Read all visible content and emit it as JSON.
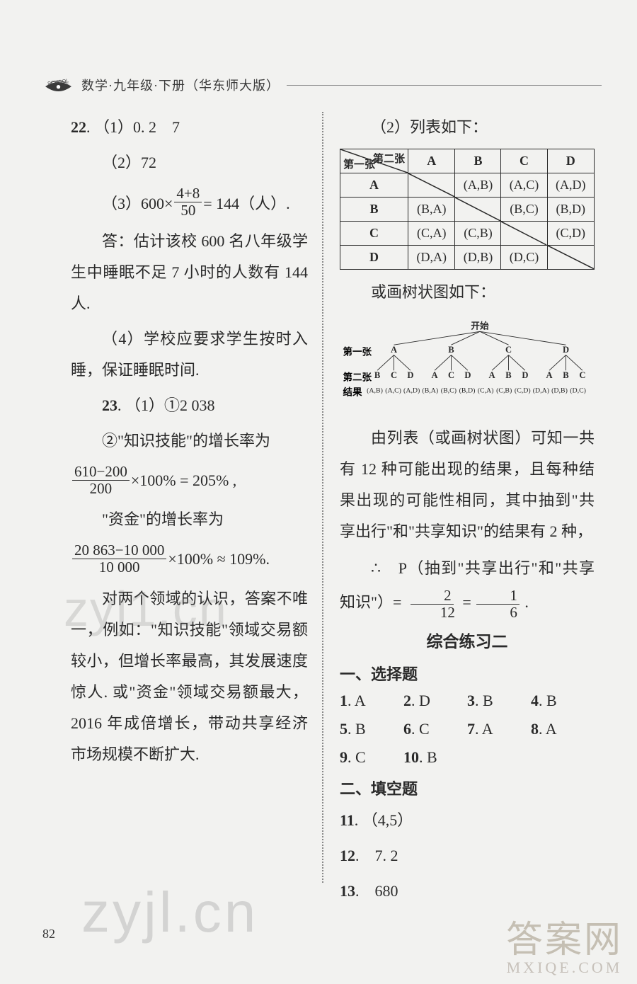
{
  "header": {
    "title": "数学·九年级·下册（华东师大版）",
    "logo_text": "SCHOOL"
  },
  "left": {
    "l1a": "22",
    "l1b": "（1）0. 2　7",
    "l2": "（2）72",
    "l3_prefix": "（3）600×",
    "l3_num": "4+8",
    "l3_den": "50",
    "l3_suffix": "= 144（人）.",
    "l4": "答：估计该校 600 名八年级学生中睡眠不足 7 小时的人数有 144 人.",
    "l5": "（4）学校应要求学生按时入睡，保证睡眠时间.",
    "l6a": "23",
    "l6b": "（1）①2 038",
    "l7": "②\"知识技能\"的增长率为",
    "l8_num": "610−200",
    "l8_den": "200",
    "l8_suffix": "×100% = 205% ,",
    "l9": "\"资金\"的增长率为",
    "l10_num": "20 863−10 000",
    "l10_den": "10 000",
    "l10_suffix": "×100% ≈ 109%.",
    "l11": "对两个领域的认识，答案不唯一，例如：\"知识技能\"领域交易额较小，但增长率最高，其发展速度惊人. 或\"资金\"领域交易额最大，2016 年成倍增长，带动共享经济市场规模不断扩大."
  },
  "right": {
    "r1": "（2）列表如下：",
    "table": {
      "col_header_top": "第二张",
      "col_header_bot": "第一张",
      "cols": [
        "A",
        "B",
        "C",
        "D"
      ],
      "rows": [
        {
          "h": "A",
          "cells": [
            "",
            "(A,B)",
            "(A,C)",
            "(A,D)"
          ]
        },
        {
          "h": "B",
          "cells": [
            "(B,A)",
            "",
            "(B,C)",
            "(B,D)"
          ]
        },
        {
          "h": "C",
          "cells": [
            "(C,A)",
            "(C,B)",
            "",
            "(C,D)"
          ]
        },
        {
          "h": "D",
          "cells": [
            "(D,A)",
            "(D,B)",
            "(D,C)",
            ""
          ]
        }
      ]
    },
    "r2": "或画树状图如下：",
    "tree": {
      "root": "开始",
      "row1_label": "第一张",
      "row2_label": "第二张",
      "row3_label": "结果",
      "level1": [
        "A",
        "B",
        "C",
        "D"
      ],
      "level2": [
        [
          "B",
          "C",
          "D"
        ],
        [
          "A",
          "C",
          "D"
        ],
        [
          "A",
          "B",
          "D"
        ],
        [
          "A",
          "B",
          "C"
        ]
      ],
      "outcomes": [
        "(A,B)",
        "(A,C)",
        "(A,D)",
        "(B,A)",
        "(B,C)",
        "(B,D)",
        "(C,A)",
        "(C,B)",
        "(C,D)",
        "(D,A)",
        "(D,B)",
        "(D,C)"
      ]
    },
    "r3": "由列表（或画树状图）可知一共有 12 种可能出现的结果，且每种结果出现的可能性相同，其中抽到\"共享出行\"和\"共享知识\"的结果有 2 种，",
    "r4_prefix": "∴　P（抽到\"共享出行\"和\"共享知识\"）= ",
    "r4_num1": "2",
    "r4_den1": "12",
    "r4_eq": " = ",
    "r4_num2": "1",
    "r4_den2": "6",
    "r4_suffix": " .",
    "sec_title": "综合练习二",
    "sub1": "一、选择题",
    "mc": [
      {
        "n": "1",
        "a": "A"
      },
      {
        "n": "2",
        "a": "D"
      },
      {
        "n": "3",
        "a": "B"
      },
      {
        "n": "4",
        "a": "B"
      },
      {
        "n": "5",
        "a": "B"
      },
      {
        "n": "6",
        "a": "C"
      },
      {
        "n": "7",
        "a": "A"
      },
      {
        "n": "8",
        "a": "A"
      },
      {
        "n": "9",
        "a": "C"
      },
      {
        "n": "10",
        "a": "B"
      }
    ],
    "sub2": "二、填空题",
    "f11": "（4,5）",
    "f12": "7. 2",
    "f13": "680"
  },
  "page_num": "82",
  "watermarks": {
    "wm1": "zyj1.cn",
    "wm2": "zyjl.cn",
    "wm3_big": "答案网",
    "wm3_small": "MXIQE.COM"
  },
  "colors": {
    "text": "#2a2a2a",
    "bg": "#f2f2f0",
    "border": "#2a2a2a",
    "dotted": "#888888"
  }
}
